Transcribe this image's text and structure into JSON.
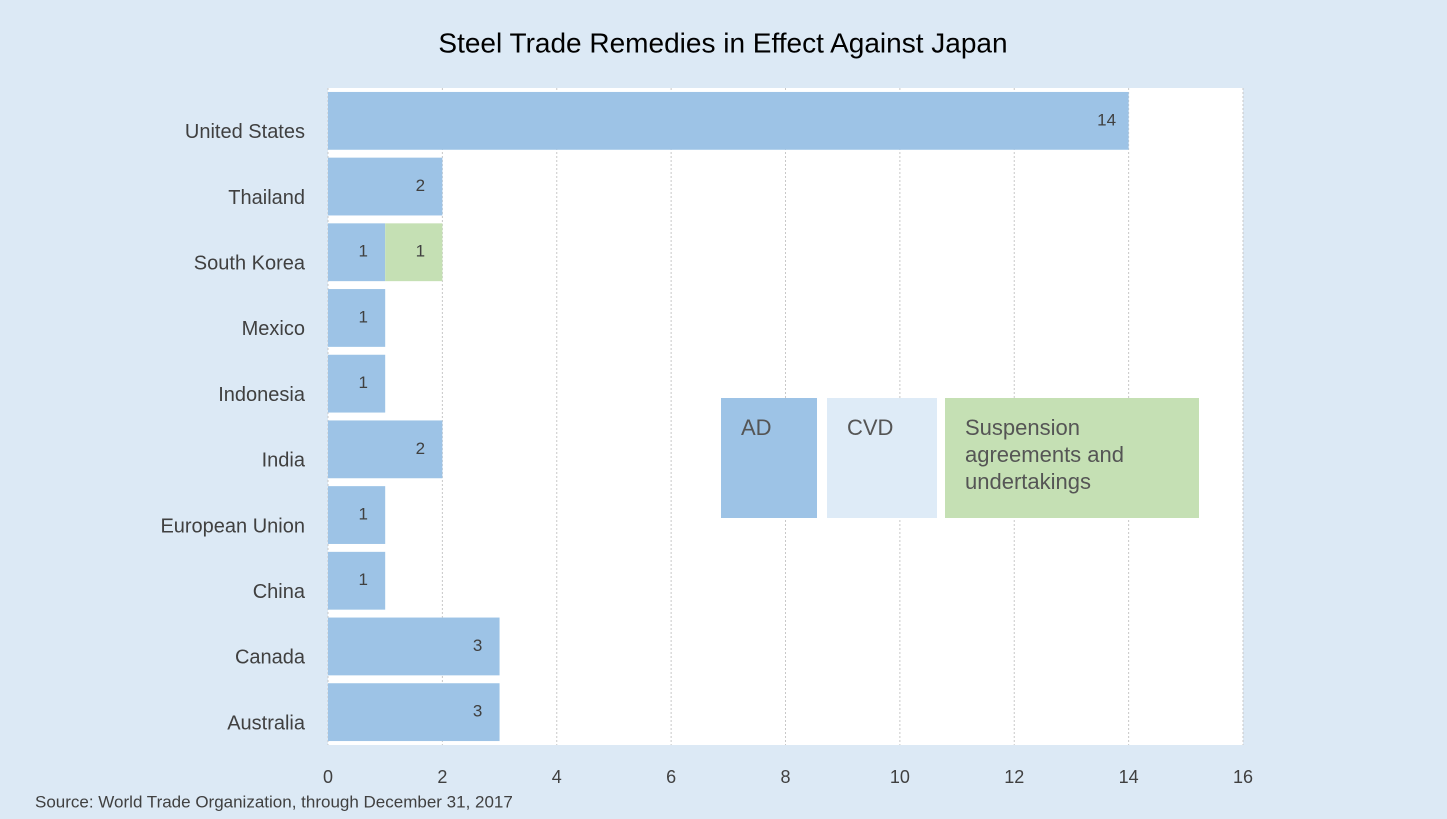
{
  "chart_data": {
    "type": "bar",
    "orientation": "horizontal",
    "stacked": true,
    "title": "Steel Trade Remedies in Effect Against Japan",
    "source": "Source: World Trade Organization, through December 31, 2017",
    "categories": [
      "United States",
      "Thailand",
      "South Korea",
      "Mexico",
      "Indonesia",
      "India",
      "European Union",
      "China",
      "Canada",
      "Australia"
    ],
    "series": [
      {
        "name": "AD",
        "color": "#9dc3e6",
        "values": [
          14,
          2,
          1,
          1,
          1,
          2,
          1,
          1,
          3,
          3
        ]
      },
      {
        "name": "CVD",
        "color": "#deebf7",
        "values": [
          null,
          null,
          null,
          null,
          null,
          null,
          null,
          null,
          null,
          null
        ]
      },
      {
        "name": "Suspension agreements and undertakings",
        "color": "#c5e0b4",
        "values": [
          null,
          null,
          1,
          null,
          null,
          null,
          null,
          null,
          null,
          null
        ]
      }
    ],
    "xlim": [
      0,
      16
    ],
    "xticks": [
      0,
      2,
      4,
      6,
      8,
      10,
      12,
      14,
      16
    ],
    "grid": true,
    "legend": "right"
  }
}
